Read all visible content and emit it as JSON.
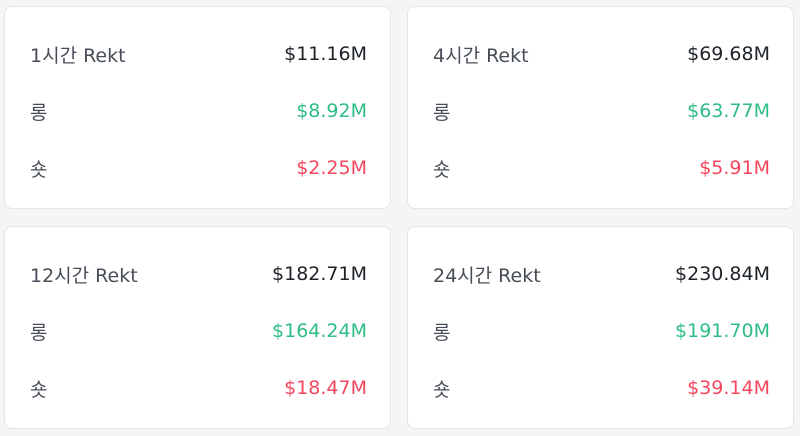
{
  "colors": {
    "long": "#2ebd85",
    "short": "#f6465d",
    "text": "#1e2329"
  },
  "cards": [
    {
      "title": "1시간 Rekt",
      "total": "$11.16M",
      "long_label": "롱",
      "long_value": "$8.92M",
      "short_label": "숏",
      "short_value": "$2.25M"
    },
    {
      "title": "4시간 Rekt",
      "total": "$69.68M",
      "long_label": "롱",
      "long_value": "$63.77M",
      "short_label": "숏",
      "short_value": "$5.91M"
    },
    {
      "title": "12시간 Rekt",
      "total": "$182.71M",
      "long_label": "롱",
      "long_value": "$164.24M",
      "short_label": "숏",
      "short_value": "$18.47M"
    },
    {
      "title": "24시간 Rekt",
      "total": "$230.84M",
      "long_label": "롱",
      "long_value": "$191.70M",
      "short_label": "숏",
      "short_value": "$39.14M"
    }
  ]
}
